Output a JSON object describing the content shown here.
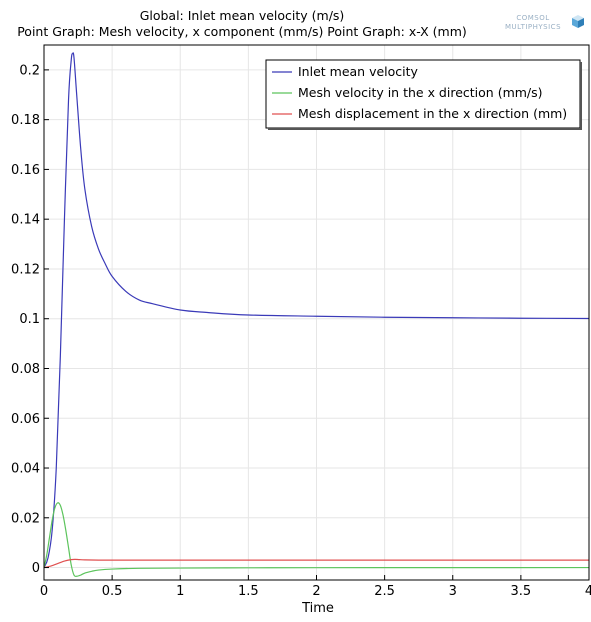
{
  "chart_data": {
    "type": "line",
    "title_lines": [
      "Global: Inlet mean velocity (m/s)",
      "Point Graph: Mesh velocity, x component (mm/s)  Point Graph: x-X (mm)"
    ],
    "xlabel": "Time",
    "ylabel": "",
    "xlim": [
      0,
      4
    ],
    "ylim": [
      -0.005,
      0.21
    ],
    "x_ticks": [
      0,
      0.5,
      1,
      1.5,
      2,
      2.5,
      3,
      3.5,
      4
    ],
    "x_tick_labels": [
      "0",
      "0.5",
      "1",
      "1.5",
      "2",
      "2.5",
      "3",
      "3.5",
      "4"
    ],
    "y_ticks": [
      0,
      0.02,
      0.04,
      0.06,
      0.08,
      0.1,
      0.12,
      0.14,
      0.16,
      0.18,
      0.2
    ],
    "y_tick_labels": [
      "0",
      "0.02",
      "0.04",
      "0.06",
      "0.08",
      "0.1",
      "0.12",
      "0.14",
      "0.16",
      "0.18",
      "0.2"
    ],
    "grid": true,
    "legend_position": "top-right",
    "series": [
      {
        "name": "Inlet mean velocity",
        "color": "#3a3ab8",
        "x": [
          0,
          0.03,
          0.06,
          0.09,
          0.12,
          0.15,
          0.18,
          0.2,
          0.21,
          0.22,
          0.24,
          0.27,
          0.3,
          0.35,
          0.4,
          0.45,
          0.5,
          0.6,
          0.7,
          0.8,
          1.0,
          1.2,
          1.5,
          2.0,
          2.5,
          3.0,
          3.5,
          4.0
        ],
        "y": [
          0,
          0.004,
          0.015,
          0.04,
          0.085,
          0.14,
          0.188,
          0.204,
          0.2065,
          0.205,
          0.19,
          0.168,
          0.152,
          0.137,
          0.128,
          0.122,
          0.117,
          0.111,
          0.1075,
          0.106,
          0.1035,
          0.1025,
          0.1015,
          0.101,
          0.1006,
          0.1004,
          0.1002,
          0.1001
        ]
      },
      {
        "name": "Mesh velocity in the x direction (mm/s)",
        "color": "#5cc45c",
        "x": [
          0,
          0.02,
          0.04,
          0.06,
          0.08,
          0.1,
          0.12,
          0.14,
          0.16,
          0.18,
          0.2,
          0.22,
          0.24,
          0.27,
          0.3,
          0.35,
          0.4,
          0.5,
          0.7,
          1.0,
          1.5,
          2.0,
          3.0,
          4.0
        ],
        "y": [
          0,
          0.005,
          0.012,
          0.019,
          0.024,
          0.026,
          0.025,
          0.021,
          0.015,
          0.008,
          0.001,
          -0.003,
          -0.0035,
          -0.003,
          -0.0022,
          -0.0015,
          -0.001,
          -0.0006,
          -0.0003,
          -0.0002,
          -0.0001,
          -5e-05,
          -2e-05,
          0
        ]
      },
      {
        "name": "Mesh displacement in the x direction (mm)",
        "color": "#e05050",
        "x": [
          0,
          0.05,
          0.1,
          0.15,
          0.2,
          0.23,
          0.26,
          0.3,
          0.4,
          0.5,
          0.7,
          1.0,
          1.5,
          2.0,
          3.0,
          4.0
        ],
        "y": [
          0,
          0.0006,
          0.0016,
          0.0026,
          0.0032,
          0.0033,
          0.0032,
          0.0031,
          0.003,
          0.003,
          0.003,
          0.003,
          0.003,
          0.003,
          0.003,
          0.003
        ]
      }
    ]
  },
  "logo": {
    "line1": "COMSOL",
    "line2": "MULTIPHYSICS"
  }
}
